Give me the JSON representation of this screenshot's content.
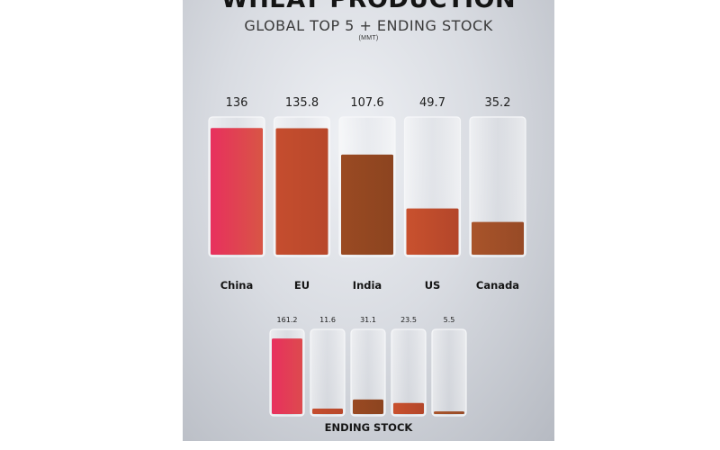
{
  "header": {
    "title": "WHEAT PRODUCTION",
    "subtitle": "GLOBAL TOP 5 + ENDING STOCK",
    "unit": "(MMT)"
  },
  "chart_data": [
    {
      "type": "bar",
      "name": "production",
      "categories": [
        "China",
        "EU",
        "India",
        "US",
        "Canada"
      ],
      "values": [
        136,
        135.8,
        107.6,
        49.7,
        35.2
      ],
      "value_labels": [
        "136",
        "135.8",
        "107.6",
        "49.7",
        "35.2"
      ],
      "colors": [
        [
          "#e8305e",
          "#d85545"
        ],
        [
          "#c54d2e",
          "#b8482b"
        ],
        [
          "#9a4a22",
          "#8c4420"
        ],
        [
          "#c9512e",
          "#b3462a"
        ],
        [
          "#a9542a",
          "#974a26"
        ]
      ],
      "ylim": [
        0,
        145
      ]
    },
    {
      "type": "bar",
      "name": "ending_stock",
      "title": "ENDING STOCK",
      "values": [
        161.2,
        11.6,
        31.1,
        23.5,
        5.5
      ],
      "value_labels": [
        "161.2",
        "11.6",
        "31.1",
        "23.5",
        "5.5"
      ],
      "colors": [
        [
          "#e8305e",
          "#dd4a4e"
        ],
        [
          "#c54d2e",
          "#b8482b"
        ],
        [
          "#9a4a22",
          "#8c4420"
        ],
        [
          "#c9512e",
          "#b3462a"
        ],
        [
          "#a9542a",
          "#974a26"
        ]
      ],
      "ylim": [
        0,
        175
      ]
    }
  ]
}
